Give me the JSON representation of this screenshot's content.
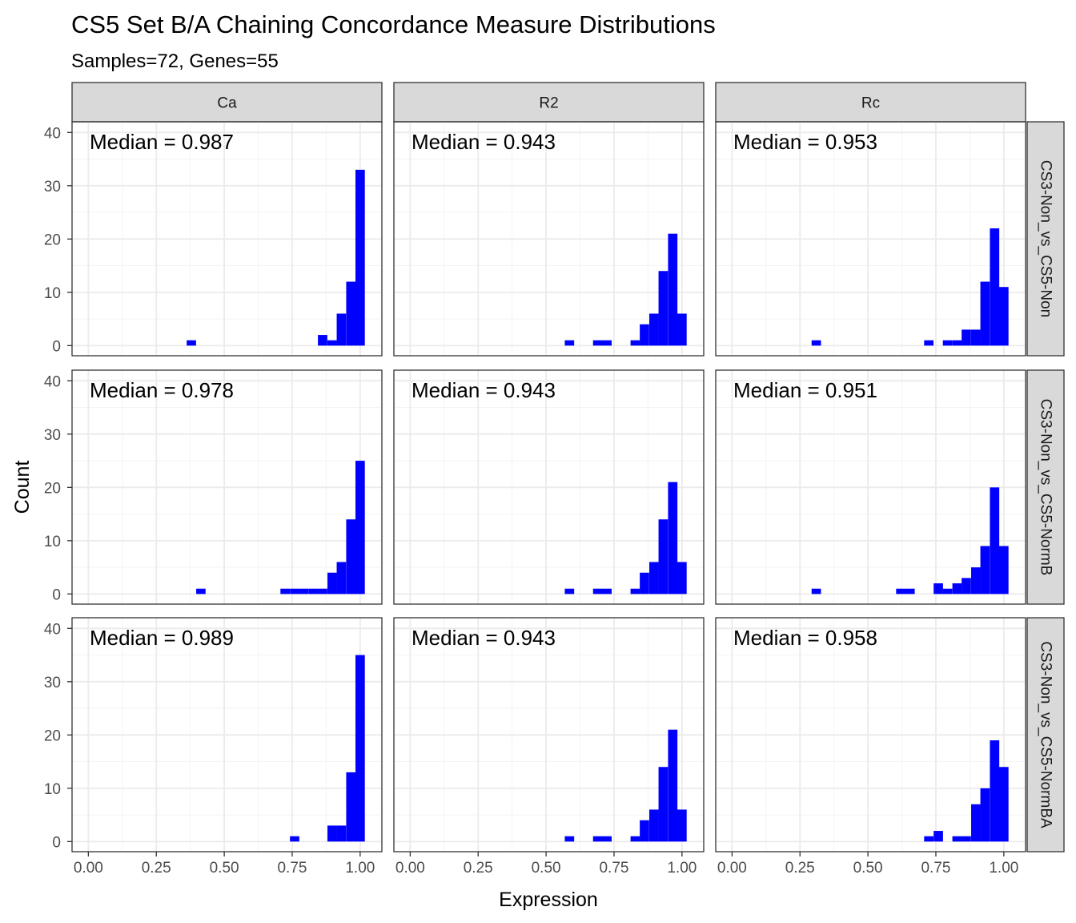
{
  "chart_data": {
    "type": "bar",
    "title": "CS5 Set B/A Chaining Concordance Measure Distributions",
    "subtitle": "Samples=72, Genes=55",
    "xlabel": "Expression",
    "ylabel": "Count",
    "xlim": [
      -0.06,
      1.08
    ],
    "ylim": [
      -1.9,
      42
    ],
    "x_ticks": [
      "0.00",
      "0.25",
      "0.50",
      "0.75",
      "1.00"
    ],
    "x_tick_values": [
      0,
      0.25,
      0.5,
      0.75,
      1.0
    ],
    "y_ticks": [
      "0",
      "10",
      "20",
      "30",
      "40"
    ],
    "y_tick_values": [
      0,
      10,
      20,
      30,
      40
    ],
    "bin_width": 0.0345,
    "grid": true,
    "bar_color": "#0000ff",
    "col_strips": [
      "Ca",
      "R2",
      "Rc"
    ],
    "row_strips": [
      "CS3-Non_vs_CS5-Non",
      "CS3-Non_vs_CS5-NormB",
      "CS3-Non_vs_CS5-NormBA"
    ],
    "panels": [
      {
        "row": 0,
        "col": 0,
        "median_label": "Median = 0.987",
        "bins": [
          [
            0.379,
            1
          ],
          [
            0.862,
            2
          ],
          [
            0.897,
            1
          ],
          [
            0.931,
            6
          ],
          [
            0.966,
            12
          ],
          [
            1.0,
            33
          ]
        ]
      },
      {
        "row": 0,
        "col": 1,
        "median_label": "Median = 0.943",
        "bins": [
          [
            0.586,
            1
          ],
          [
            0.69,
            1
          ],
          [
            0.724,
            1
          ],
          [
            0.828,
            1
          ],
          [
            0.862,
            4
          ],
          [
            0.897,
            6
          ],
          [
            0.931,
            14
          ],
          [
            0.966,
            21
          ],
          [
            1.0,
            6
          ]
        ]
      },
      {
        "row": 0,
        "col": 2,
        "median_label": "Median = 0.953",
        "bins": [
          [
            0.31,
            1
          ],
          [
            0.724,
            1
          ],
          [
            0.793,
            1
          ],
          [
            0.828,
            1
          ],
          [
            0.862,
            3
          ],
          [
            0.897,
            3
          ],
          [
            0.931,
            12
          ],
          [
            0.966,
            22
          ],
          [
            1.0,
            11
          ]
        ]
      },
      {
        "row": 1,
        "col": 0,
        "median_label": "Median = 0.978",
        "bins": [
          [
            0.414,
            1
          ],
          [
            0.724,
            1
          ],
          [
            0.759,
            1
          ],
          [
            0.793,
            1
          ],
          [
            0.828,
            1
          ],
          [
            0.862,
            1
          ],
          [
            0.897,
            4
          ],
          [
            0.931,
            6
          ],
          [
            0.966,
            14
          ],
          [
            1.0,
            25
          ]
        ]
      },
      {
        "row": 1,
        "col": 1,
        "median_label": "Median = 0.943",
        "bins": [
          [
            0.586,
            1
          ],
          [
            0.69,
            1
          ],
          [
            0.724,
            1
          ],
          [
            0.828,
            1
          ],
          [
            0.862,
            4
          ],
          [
            0.897,
            6
          ],
          [
            0.931,
            14
          ],
          [
            0.966,
            21
          ],
          [
            1.0,
            6
          ]
        ]
      },
      {
        "row": 1,
        "col": 2,
        "median_label": "Median = 0.951",
        "bins": [
          [
            0.31,
            1
          ],
          [
            0.621,
            1
          ],
          [
            0.655,
            1
          ],
          [
            0.759,
            2
          ],
          [
            0.793,
            1
          ],
          [
            0.828,
            2
          ],
          [
            0.862,
            3
          ],
          [
            0.897,
            5
          ],
          [
            0.931,
            9
          ],
          [
            0.966,
            20
          ],
          [
            1.0,
            9
          ]
        ]
      },
      {
        "row": 2,
        "col": 0,
        "median_label": "Median = 0.989",
        "bins": [
          [
            0.759,
            1
          ],
          [
            0.897,
            3
          ],
          [
            0.931,
            3
          ],
          [
            0.966,
            13
          ],
          [
            1.0,
            35
          ]
        ]
      },
      {
        "row": 2,
        "col": 1,
        "median_label": "Median = 0.943",
        "bins": [
          [
            0.586,
            1
          ],
          [
            0.69,
            1
          ],
          [
            0.724,
            1
          ],
          [
            0.828,
            1
          ],
          [
            0.862,
            4
          ],
          [
            0.897,
            6
          ],
          [
            0.931,
            14
          ],
          [
            0.966,
            21
          ],
          [
            1.0,
            6
          ]
        ]
      },
      {
        "row": 2,
        "col": 2,
        "median_label": "Median = 0.958",
        "bins": [
          [
            0.724,
            1
          ],
          [
            0.759,
            2
          ],
          [
            0.828,
            1
          ],
          [
            0.862,
            1
          ],
          [
            0.897,
            7
          ],
          [
            0.931,
            10
          ],
          [
            0.966,
            19
          ],
          [
            1.0,
            14
          ]
        ]
      }
    ]
  }
}
